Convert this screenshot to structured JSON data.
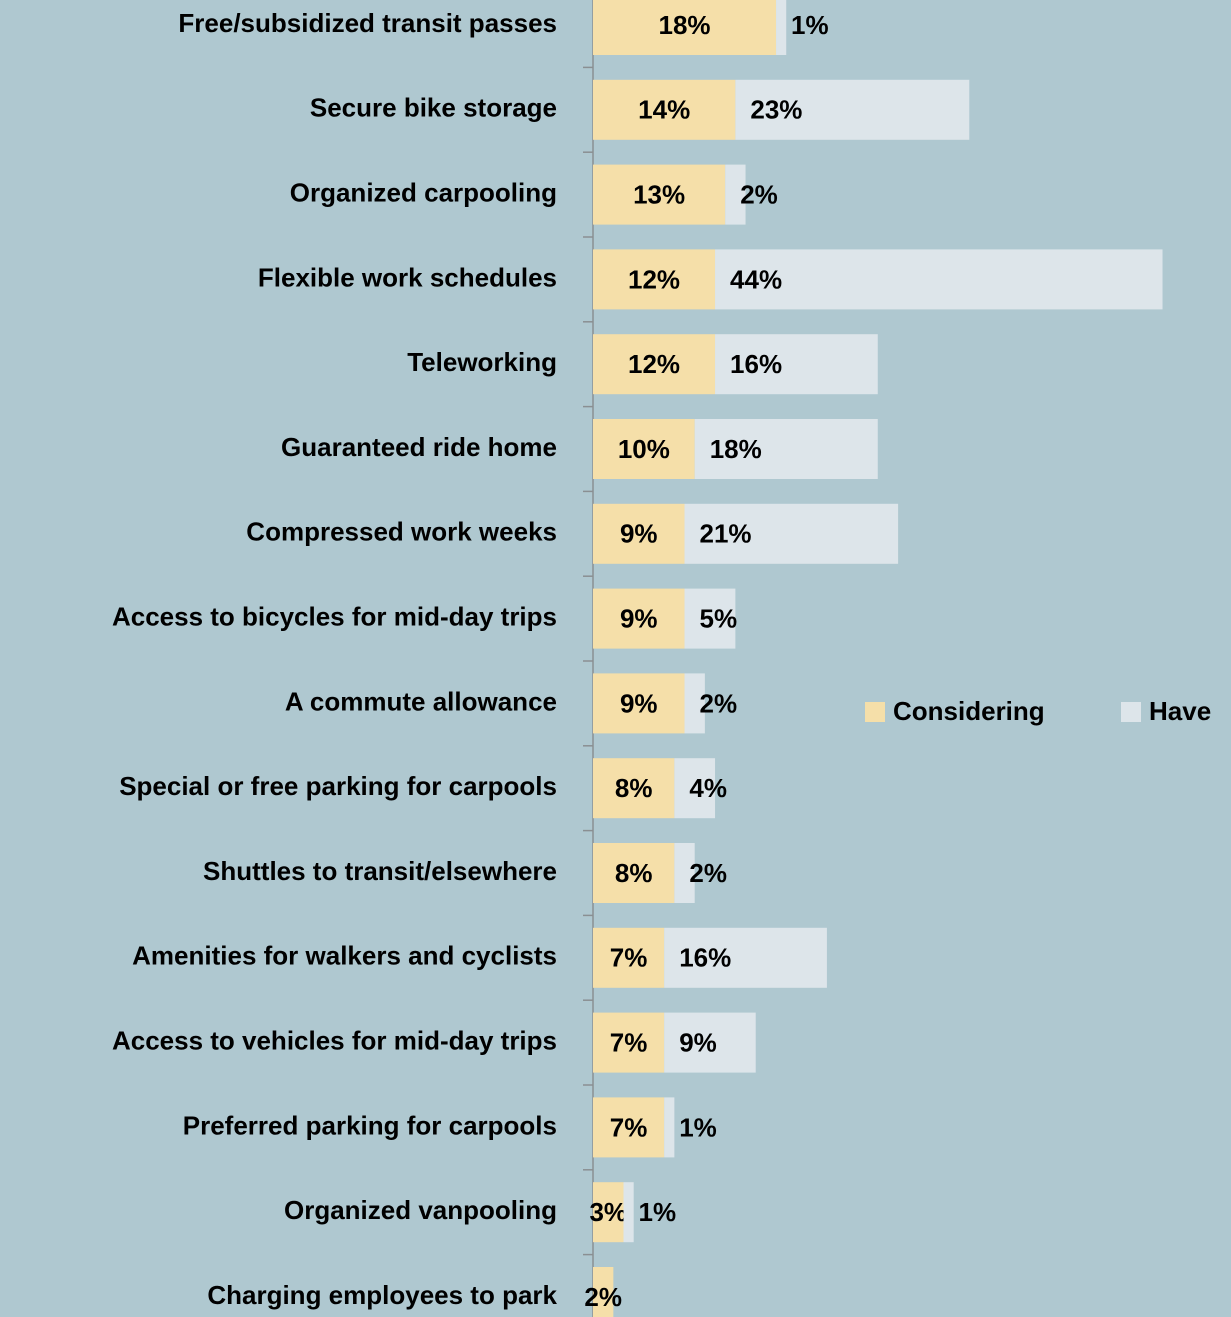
{
  "chart_data": {
    "type": "stacked-bar-horizontal",
    "categories": [
      "Free/subsidized transit passes",
      "Secure bike storage",
      "Organized carpooling",
      "Flexible work schedules",
      "Teleworking",
      "Guaranteed ride home",
      "Compressed work weeks",
      "Access to bicycles for mid-day trips",
      "A commute allowance",
      "Special or free parking for carpools",
      "Shuttles to transit/elsewhere",
      "Amenities for walkers and cyclists",
      "Access to vehicles for mid-day trips",
      "Preferred parking for carpools",
      "Organized vanpooling",
      "Charging employees to park"
    ],
    "series": [
      {
        "name": "Considering",
        "color": "#f5dfa9",
        "values": [
          18,
          14,
          13,
          12,
          12,
          10,
          9,
          9,
          9,
          8,
          8,
          7,
          7,
          7,
          3,
          2
        ],
        "value_labels": [
          "18%",
          "14%",
          "13%",
          "12%",
          "12%",
          "10%",
          "9%",
          "9%",
          "9%",
          "8%",
          "8%",
          "7%",
          "7%",
          "7%",
          "3%",
          "2%"
        ]
      },
      {
        "name": "Have",
        "color": "#dde5ea",
        "values": [
          1,
          23,
          2,
          44,
          16,
          18,
          21,
          5,
          2,
          4,
          2,
          16,
          9,
          1,
          1,
          null
        ],
        "value_labels": [
          "1%",
          "23%",
          "2%",
          "44%",
          "16%",
          "18%",
          "21%",
          "5%",
          "2%",
          "4%",
          "2%",
          "16%",
          "9%",
          "1%",
          "1%",
          null
        ]
      }
    ],
    "legend": "right"
  }
}
